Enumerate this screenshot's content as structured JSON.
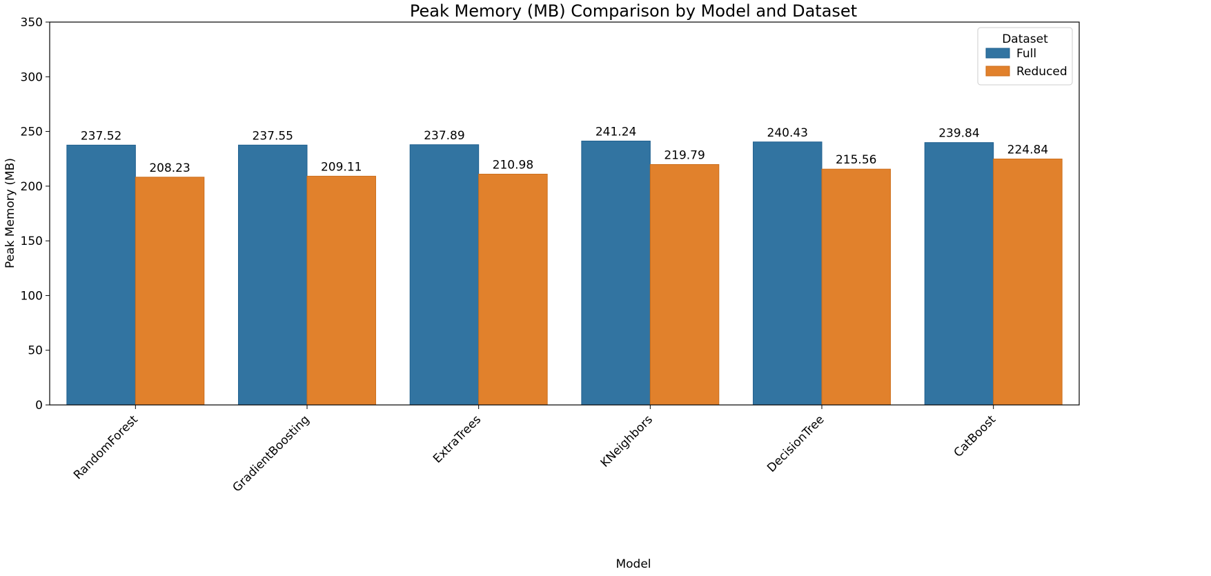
{
  "chart_data": {
    "type": "bar",
    "title": "Peak Memory (MB) Comparison by Model and Dataset",
    "xlabel": "Model",
    "ylabel": "Peak Memory (MB)",
    "categories": [
      "RandomForest",
      "GradientBoosting",
      "ExtraTrees",
      "KNeighbors",
      "DecisionTree",
      "CatBoost"
    ],
    "series": [
      {
        "name": "Full",
        "color": "#3274a1",
        "values": [
          237.52,
          237.55,
          237.89,
          241.24,
          240.43,
          239.84
        ],
        "labels": [
          "237.52",
          "237.55",
          "237.89",
          "241.24",
          "240.43",
          "239.84"
        ]
      },
      {
        "name": "Reduced",
        "color": "#e1812c",
        "values": [
          208.23,
          209.11,
          210.98,
          219.79,
          215.56,
          224.84
        ],
        "labels": [
          "208.23",
          "209.11",
          "210.98",
          "219.79",
          "215.56",
          "224.84"
        ]
      }
    ],
    "ylim": [
      0,
      350
    ],
    "yticks": [
      0,
      50,
      100,
      150,
      200,
      250,
      300,
      350
    ],
    "ytick_labels": [
      "0",
      "50",
      "100",
      "150",
      "200",
      "250",
      "300",
      "350"
    ],
    "grid": false,
    "legend": {
      "title": "Dataset",
      "placement": "top-right"
    },
    "bar_edge_colors": [
      "#1f5f8e",
      "#cc6d1a"
    ]
  }
}
